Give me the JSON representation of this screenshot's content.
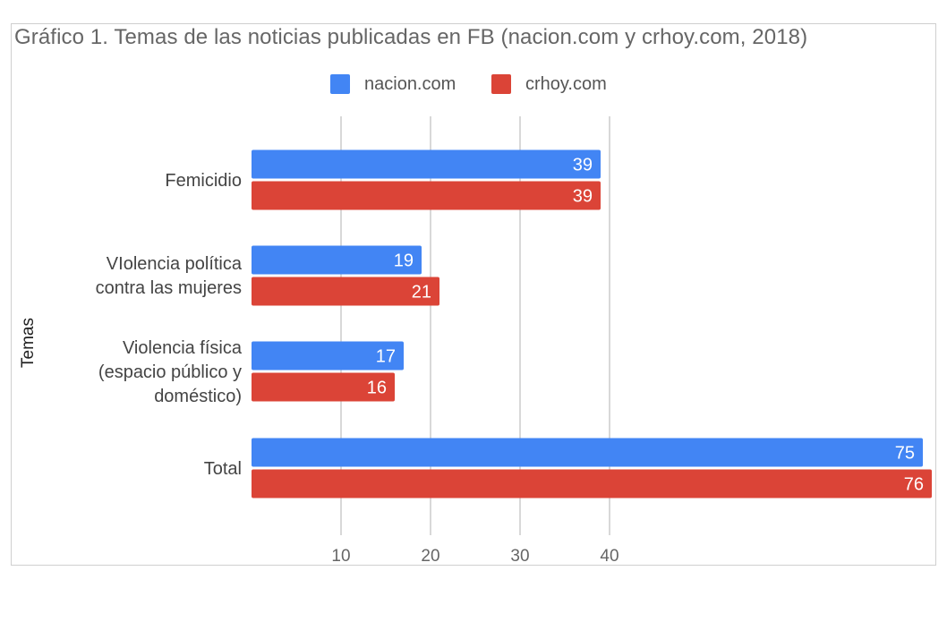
{
  "chart_data": {
    "type": "bar",
    "orientation": "horizontal",
    "title": "Gráfico 1. Temas de las noticias publicadas en FB (nacion.com y crhoy.com, 2018)",
    "ylabel": "Temas",
    "xlabel": "",
    "categories": [
      [
        "Femicidio"
      ],
      [
        "VIolencia política",
        "contra las mujeres"
      ],
      [
        "Violencia física",
        "(espacio público y",
        "doméstico)"
      ],
      [
        "Total"
      ]
    ],
    "series": [
      {
        "name": "nacion.com",
        "color": "#4285f4",
        "values": [
          39,
          19,
          17,
          75
        ]
      },
      {
        "name": "crhoy.com",
        "color": "#db4437",
        "values": [
          39,
          21,
          16,
          76
        ]
      }
    ],
    "x_ticks": [
      10,
      20,
      30,
      40
    ],
    "xlim": [
      0,
      76
    ],
    "grid": true,
    "legend_position": "top"
  }
}
